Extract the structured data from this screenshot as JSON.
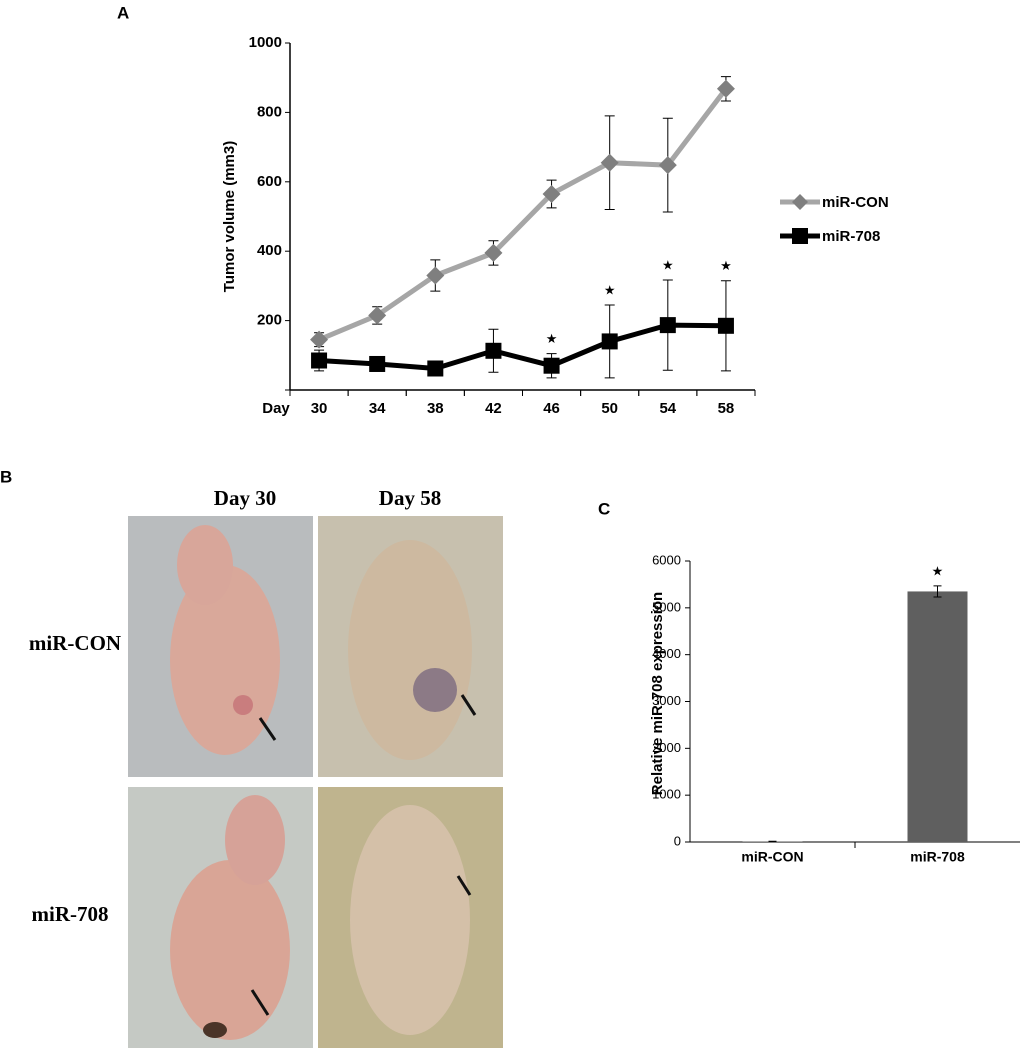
{
  "panels": [
    "A",
    "B",
    "C"
  ],
  "photos": {
    "columns": [
      "Day 30",
      "Day 58"
    ],
    "rows": [
      "miR-CON",
      "miR-708"
    ]
  },
  "chart_data": [
    {
      "type": "line",
      "xlabel": "Day",
      "ylabel": "Tumor volume (mm3)",
      "x": [
        30,
        34,
        38,
        42,
        46,
        50,
        54,
        58
      ],
      "xlim": [
        28,
        60
      ],
      "xticks": [
        30,
        34,
        38,
        42,
        46,
        50,
        54,
        58
      ],
      "ylim": [
        0,
        1000
      ],
      "yticks": [
        200,
        400,
        600,
        800,
        1000
      ],
      "legend": "right",
      "series": [
        {
          "name": "miR-CON",
          "color": "#a6a6a6",
          "marker_color": "#7f7f7f",
          "marker": "diamond",
          "values": [
            145,
            215,
            330,
            395,
            565,
            655,
            648,
            868
          ],
          "errors": [
            20,
            25,
            45,
            35,
            40,
            135,
            135,
            35
          ]
        },
        {
          "name": "miR-708",
          "color": "#000000",
          "marker_color": "#000000",
          "marker": "square",
          "values": [
            85,
            75,
            62,
            113,
            70,
            140,
            187,
            185
          ],
          "errors": [
            30,
            15,
            10,
            62,
            35,
            105,
            130,
            130
          ]
        }
      ],
      "annotations": [
        {
          "text": "★",
          "x": 46
        },
        {
          "text": "★",
          "x": 50
        },
        {
          "text": "★",
          "x": 54
        },
        {
          "text": "★",
          "x": 58
        }
      ]
    },
    {
      "type": "bar",
      "ylabel": "Relative miR-708 expression",
      "categories": [
        "miR-CON",
        "miR-708"
      ],
      "values": [
        10,
        5350
      ],
      "errors": [
        5,
        120
      ],
      "color": "#5f5f5f",
      "ylim": [
        0,
        6000
      ],
      "yticks": [
        0,
        1000,
        2000,
        3000,
        4000,
        5000,
        6000
      ],
      "annotations": [
        {
          "text": "★",
          "category": "miR-708"
        }
      ]
    }
  ]
}
